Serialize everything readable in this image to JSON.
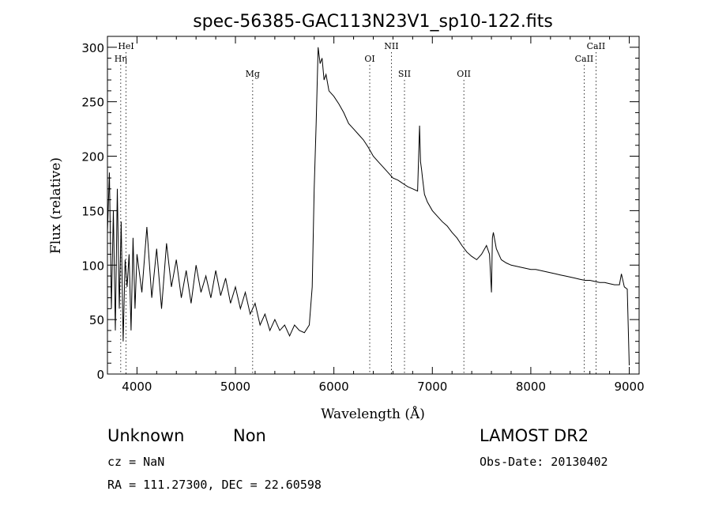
{
  "chart_data": {
    "type": "line",
    "title": "spec-56385-GAC113N23V1_sp10-122.fits",
    "xlabel": "Wavelength (Å)",
    "ylabel": "Flux (relative)",
    "xlim": [
      3700,
      9100
    ],
    "ylim": [
      0,
      310
    ],
    "x_ticks": [
      4000,
      5000,
      6000,
      7000,
      8000,
      9000
    ],
    "y_ticks": [
      0,
      50,
      100,
      150,
      200,
      250,
      300
    ],
    "grid": false,
    "lines": [
      {
        "label": "HeI",
        "x": 3889,
        "row": 0
      },
      {
        "label": "Hη",
        "x": 3835,
        "row": 1
      },
      {
        "label": "Mg",
        "x": 5175,
        "row": 2
      },
      {
        "label": "OI",
        "x": 6364,
        "row": 1
      },
      {
        "label": "NII",
        "x": 6584,
        "row": 0
      },
      {
        "label": "SII",
        "x": 6717,
        "row": 2
      },
      {
        "label": "OII",
        "x": 7320,
        "row": 2
      },
      {
        "label": "CaII",
        "x": 8542,
        "row": 1
      },
      {
        "label": "CaII",
        "x": 8662,
        "row": 0
      }
    ],
    "series": [
      {
        "x": [
          3700,
          3720,
          3740,
          3760,
          3780,
          3800,
          3820,
          3840,
          3860,
          3880,
          3900,
          3920,
          3940,
          3960,
          3980,
          4000,
          4050,
          4100,
          4150,
          4200,
          4250,
          4300,
          4350,
          4400,
          4450,
          4500,
          4550,
          4600,
          4650,
          4700,
          4750,
          4800,
          4850,
          4900,
          4950,
          5000,
          5050,
          5100,
          5150,
          5200,
          5250,
          5300,
          5350,
          5400,
          5450,
          5500,
          5550,
          5600,
          5650,
          5700,
          5750,
          5780,
          5800,
          5820,
          5840,
          5860,
          5880,
          5900,
          5920,
          5950,
          6000,
          6050,
          6100,
          6150,
          6200,
          6250,
          6300,
          6350,
          6400,
          6450,
          6500,
          6550,
          6600,
          6650,
          6700,
          6750,
          6800,
          6850,
          6870,
          6880,
          6890,
          6900,
          6920,
          6950,
          7000,
          7050,
          7100,
          7150,
          7200,
          7250,
          7300,
          7350,
          7400,
          7450,
          7500,
          7550,
          7580,
          7600,
          7610,
          7620,
          7650,
          7700,
          7750,
          7800,
          7850,
          7900,
          7950,
          8000,
          8050,
          8100,
          8150,
          8200,
          8250,
          8300,
          8350,
          8400,
          8450,
          8500,
          8550,
          8600,
          8650,
          8700,
          8750,
          8800,
          8850,
          8900,
          8920,
          8950,
          8980,
          9000
        ],
        "y": [
          130,
          185,
          60,
          150,
          40,
          170,
          60,
          140,
          30,
          105,
          80,
          110,
          40,
          125,
          60,
          110,
          75,
          135,
          70,
          115,
          60,
          120,
          80,
          105,
          70,
          95,
          65,
          100,
          75,
          90,
          70,
          95,
          72,
          88,
          65,
          80,
          60,
          75,
          55,
          65,
          45,
          55,
          40,
          50,
          40,
          45,
          35,
          45,
          40,
          38,
          45,
          80,
          170,
          230,
          300,
          285,
          290,
          270,
          275,
          260,
          255,
          248,
          240,
          230,
          225,
          220,
          215,
          208,
          200,
          195,
          190,
          185,
          180,
          178,
          175,
          172,
          170,
          168,
          228,
          195,
          188,
          180,
          165,
          158,
          150,
          145,
          140,
          136,
          130,
          125,
          118,
          112,
          108,
          105,
          110,
          118,
          110,
          75,
          125,
          130,
          115,
          105,
          102,
          100,
          99,
          98,
          97,
          96,
          96,
          95,
          94,
          93,
          92,
          91,
          90,
          89,
          88,
          87,
          86,
          86,
          85,
          84,
          84,
          83,
          82,
          82,
          92,
          80,
          78,
          8
        ]
      }
    ]
  },
  "footer": {
    "class_label": "Unknown",
    "subclass_label": "Non",
    "cz": "cz = NaN",
    "coords": "RA = 111.27300, DEC =  22.60598",
    "survey": "LAMOST DR2",
    "obs_date": "Obs-Date: 20130402"
  }
}
